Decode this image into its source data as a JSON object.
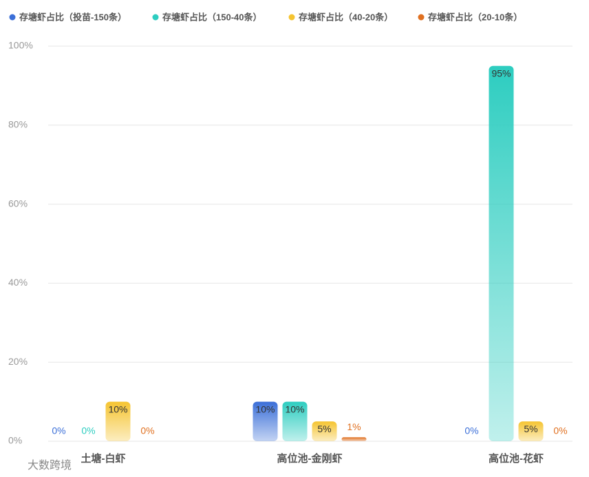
{
  "chart_data": {
    "type": "bar",
    "categories": [
      "土塘-白虾",
      "高位池-金刚虾",
      "高位池-花虾"
    ],
    "series": [
      {
        "name": "存塘虾占比（投苗-150条）",
        "color": "#3b6fd8",
        "values": [
          0,
          10,
          0
        ],
        "value_labels": [
          "0%",
          "10%",
          "0%"
        ]
      },
      {
        "name": "存塘虾占比（150-40条）",
        "color": "#2dcdc0",
        "values": [
          0,
          10,
          95
        ],
        "value_labels": [
          "0%",
          "10%",
          "95%"
        ]
      },
      {
        "name": "存塘虾占比（40-20条）",
        "color": "#f5c431",
        "values": [
          10,
          5,
          5
        ],
        "value_labels": [
          "10%",
          "5%",
          "5%"
        ]
      },
      {
        "name": "存塘虾占比（20-10条）",
        "color": "#e07020",
        "values": [
          0,
          1,
          0
        ],
        "value_labels": [
          "0%",
          "1%",
          "0%"
        ]
      }
    ],
    "ylim": [
      0,
      100
    ],
    "yticks": [
      {
        "value": 0,
        "label": "0%"
      },
      {
        "value": 20,
        "label": "20%"
      },
      {
        "value": 40,
        "label": "40%"
      },
      {
        "value": 60,
        "label": "60%"
      },
      {
        "value": 80,
        "label": "80%"
      },
      {
        "value": 100,
        "label": "100%"
      }
    ],
    "grid": true,
    "watermark": "大数跨境"
  }
}
